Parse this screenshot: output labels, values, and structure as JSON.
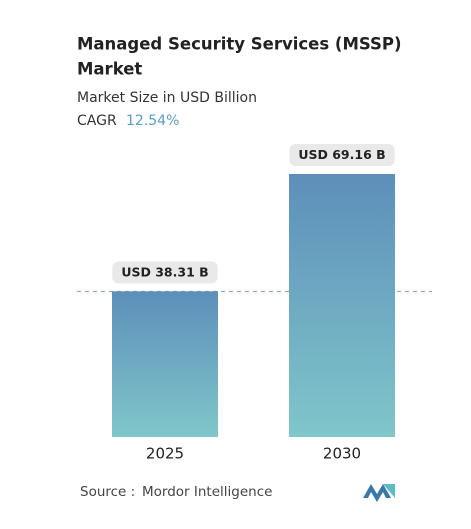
{
  "chart_data": {
    "type": "bar",
    "title": [
      "Managed Security Services (MSSP)",
      "Market"
    ],
    "subtitle": "Market Size in USD Billion",
    "cagr": {
      "label": "CAGR",
      "value": "12.54%"
    },
    "categories": [
      "2025",
      "2030"
    ],
    "values": [
      38.31,
      69.16
    ],
    "value_labels": [
      "USD 38.31 B",
      "USD 69.16 B"
    ],
    "source": {
      "label": "Source :",
      "name": "Mordor Intelligence"
    }
  }
}
